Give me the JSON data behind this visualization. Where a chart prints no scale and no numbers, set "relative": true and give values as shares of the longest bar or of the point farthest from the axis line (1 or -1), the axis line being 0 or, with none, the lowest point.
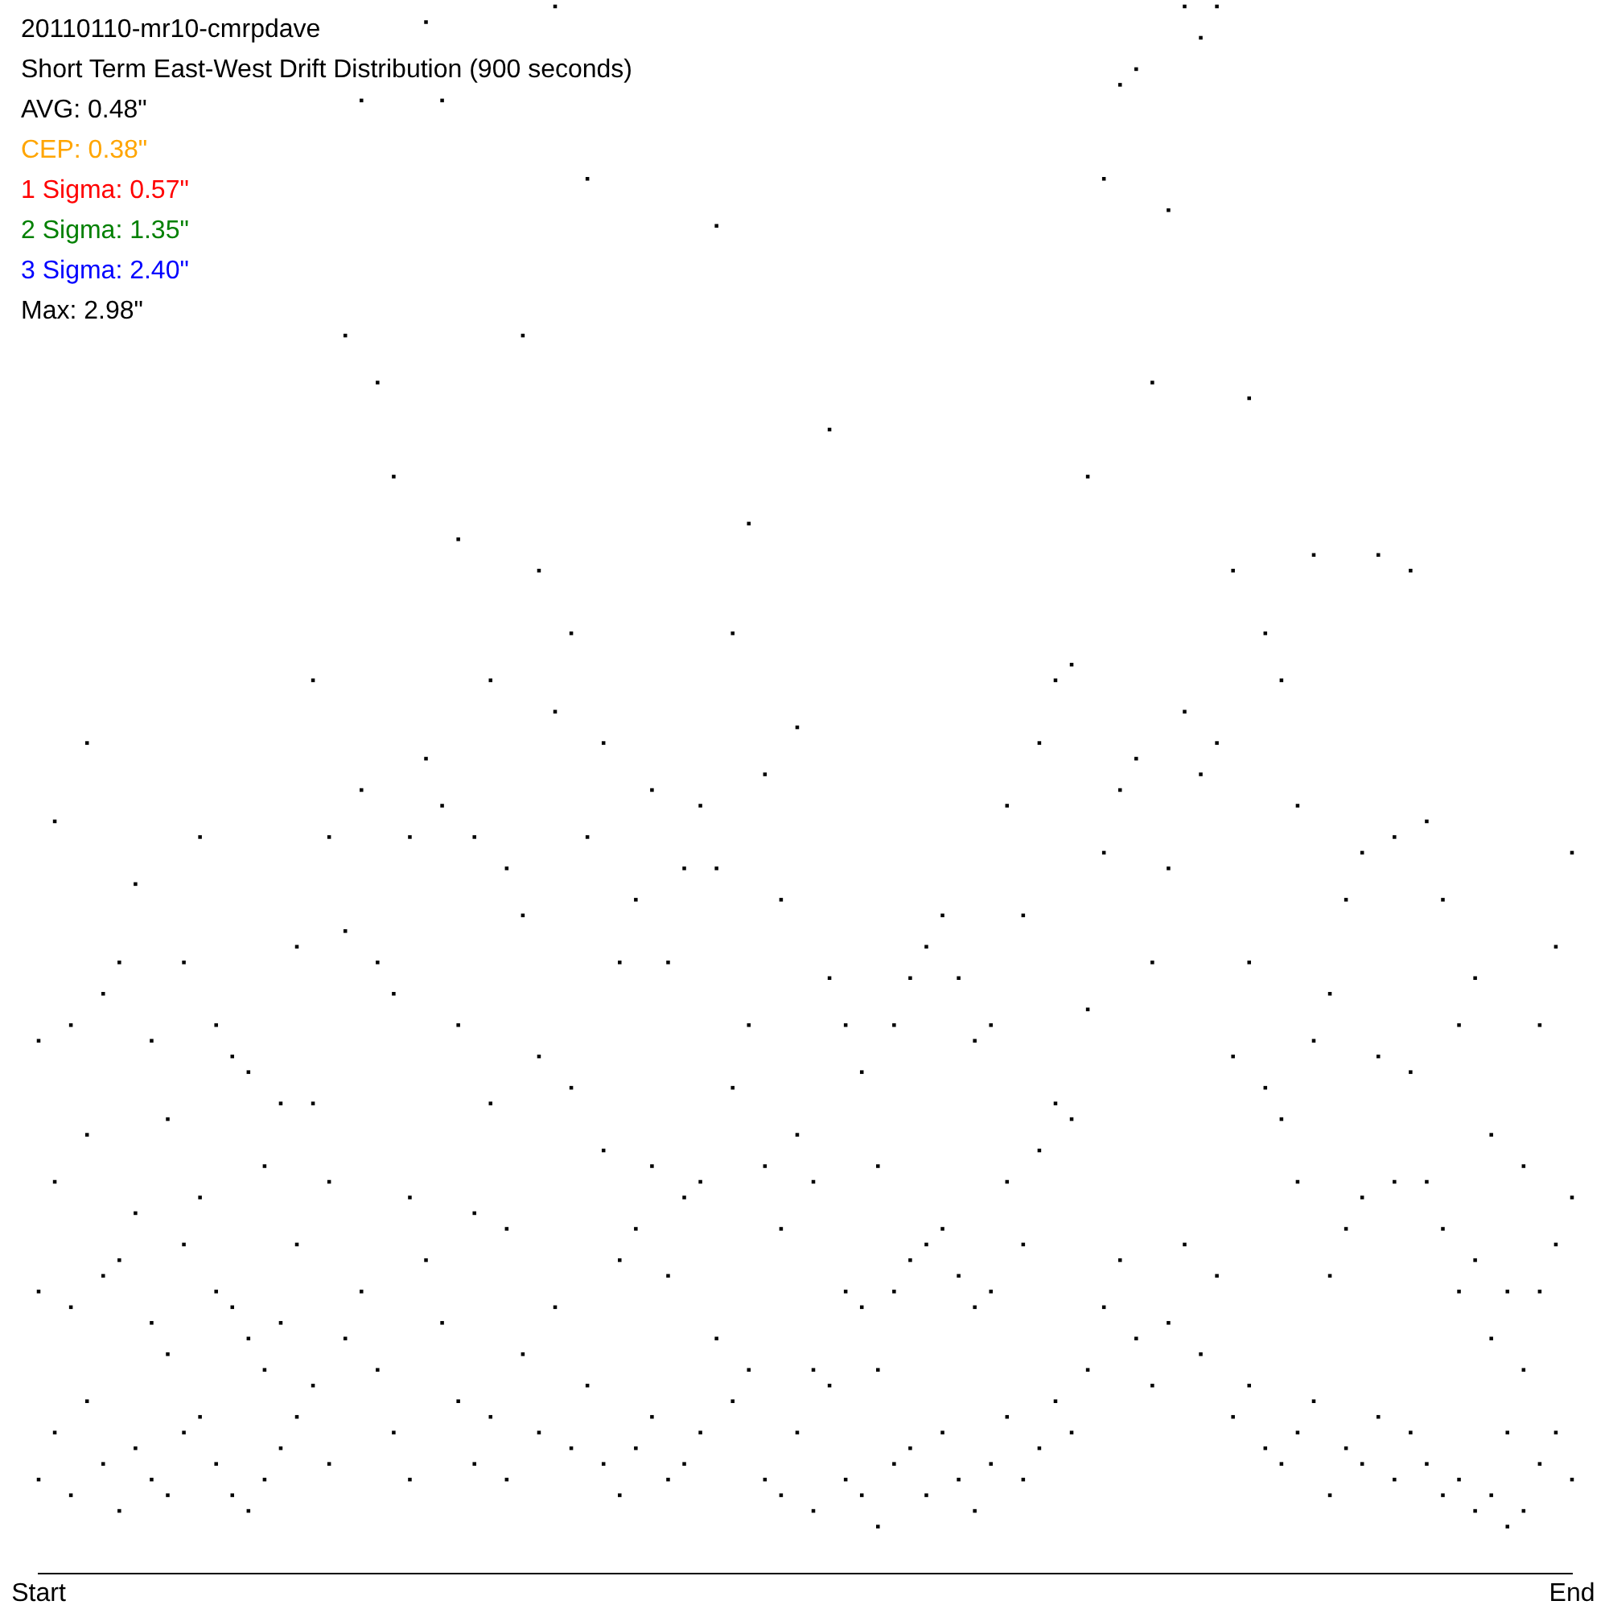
{
  "chart_data": {
    "type": "scatter",
    "title": "20110110-mr10-cmrpdave",
    "subtitle": "Short Term East-West Drift Distribution (900 seconds)",
    "annotations": [
      "AVG: 0.48\"",
      "CEP: 0.38\"",
      "1 Sigma: 0.57\"",
      "2 Sigma: 1.35\"",
      "3 Sigma: 2.40\"",
      "Max: 2.98\""
    ],
    "relative": true,
    "marker": "square",
    "categories": [
      "Start",
      null,
      null,
      null,
      null,
      null,
      null,
      null,
      null,
      null,
      null,
      null,
      null,
      null,
      null,
      null,
      null,
      null,
      null,
      null,
      null,
      null,
      null,
      null,
      null,
      null,
      null,
      null,
      null,
      null,
      null,
      null,
      null,
      null,
      null,
      null,
      null,
      null,
      null,
      null,
      null,
      null,
      null,
      null,
      null,
      null,
      null,
      null,
      null,
      null,
      null,
      null,
      null,
      null,
      null,
      null,
      null,
      null,
      null,
      null,
      null,
      null,
      null,
      null,
      null,
      null,
      null,
      null,
      null,
      null,
      null,
      null,
      null,
      null,
      null,
      null,
      null,
      null,
      null,
      null,
      null,
      null,
      null,
      null,
      null,
      null,
      null,
      null,
      null,
      null,
      null,
      null,
      null,
      null,
      null,
      "End"
    ],
    "series": [
      {
        "color": "#000000",
        "values": [
          0.34,
          0.48,
          0.35,
          0.53,
          0.37,
          0.39,
          0.44,
          0.34,
          0.29,
          0.39,
          0.47,
          0.35,
          0.33,
          0.32,
          0.26,
          0.3,
          0.4,
          0.57,
          0.47,
          0.79,
          0.94,
          0.76,
          0.7,
          0.47,
          0.99,
          0.94,
          0.66,
          0.47,
          0.57,
          0.45,
          0.79,
          0.64,
          1.0,
          0.6,
          0.89,
          0.53,
          0.39,
          0.43,
          0.5,
          0.39,
          0.45,
          0.49,
          0.86,
          0.6,
          0.67,
          0.51,
          0.43,
          0.54,
          0.25,
          0.73,
          0.35,
          0.32,
          0.26,
          0.35,
          0.38,
          0.4,
          0.42,
          0.38,
          0.34,
          0.35,
          0.49,
          0.42,
          0.53,
          0.57,
          0.58,
          0.7,
          0.89,
          0.95,
          0.96,
          0.76,
          0.87,
          1.0,
          0.98,
          1.0,
          0.64,
          0.75,
          0.6,
          0.57,
          0.49,
          0.65,
          0.37,
          0.43,
          0.46,
          0.65,
          0.47,
          0.64,
          0.48,
          0.43,
          0.35,
          0.38,
          0.28,
          0.18,
          0.26,
          0.35,
          0.4,
          0.46
        ]
      },
      {
        "color": "#000000",
        "values": [
          0.18,
          0.25,
          0.17,
          0.28,
          0.19,
          0.2,
          0.23,
          0.16,
          0.14,
          0.21,
          0.24,
          0.18,
          0.17,
          0.15,
          0.13,
          0.16,
          0.21,
          0.3,
          0.25,
          0.41,
          0.5,
          0.39,
          0.37,
          0.24,
          0.52,
          0.49,
          0.35,
          0.23,
          0.3,
          0.22,
          0.42,
          0.33,
          0.55,
          0.31,
          0.47,
          0.27,
          0.2,
          0.22,
          0.26,
          0.19,
          0.24,
          0.25,
          0.45,
          0.31,
          0.35,
          0.26,
          0.22,
          0.28,
          0.13,
          0.38,
          0.18,
          0.17,
          0.13,
          0.18,
          0.2,
          0.21,
          0.22,
          0.19,
          0.17,
          0.18,
          0.25,
          0.21,
          0.27,
          0.3,
          0.29,
          0.36,
          0.46,
          0.5,
          0.52,
          0.39,
          0.45,
          0.55,
          0.51,
          0.53,
          0.33,
          0.39,
          0.31,
          0.29,
          0.25,
          0.34,
          0.19,
          0.22,
          0.24,
          0.33,
          0.25,
          0.32,
          0.25,
          0.22,
          0.18,
          0.2,
          0.15,
          0.09,
          0.13,
          0.18,
          0.21,
          0.24
        ]
      },
      {
        "color": "#000000",
        "values": [
          0.06,
          0.09,
          0.05,
          0.11,
          0.07,
          0.04,
          0.08,
          0.06,
          0.05,
          0.09,
          0.1,
          0.07,
          0.05,
          0.04,
          0.06,
          0.08,
          0.1,
          0.12,
          0.07,
          0.15,
          0.18,
          0.13,
          0.09,
          0.06,
          0.2,
          0.16,
          0.11,
          0.07,
          0.1,
          0.06,
          0.14,
          0.09,
          0.17,
          0.08,
          0.12,
          0.07,
          0.05,
          0.08,
          0.1,
          0.06,
          0.07,
          0.09,
          0.15,
          0.11,
          0.13,
          0.06,
          0.05,
          0.09,
          0.04,
          0.12,
          0.06,
          0.05,
          0.03,
          0.07,
          0.08,
          0.05,
          0.09,
          0.06,
          0.04,
          0.07,
          0.1,
          0.06,
          0.08,
          0.11,
          0.09,
          0.13,
          0.17,
          0.2,
          0.15,
          0.12,
          0.16,
          0.21,
          0.14,
          0.19,
          0.1,
          0.12,
          0.08,
          0.07,
          0.09,
          0.11,
          0.05,
          0.08,
          0.07,
          0.1,
          0.06,
          0.09,
          0.07,
          0.05,
          0.06,
          0.04,
          0.05,
          0.03,
          0.04,
          0.07,
          0.09,
          0.06
        ]
      }
    ]
  }
}
